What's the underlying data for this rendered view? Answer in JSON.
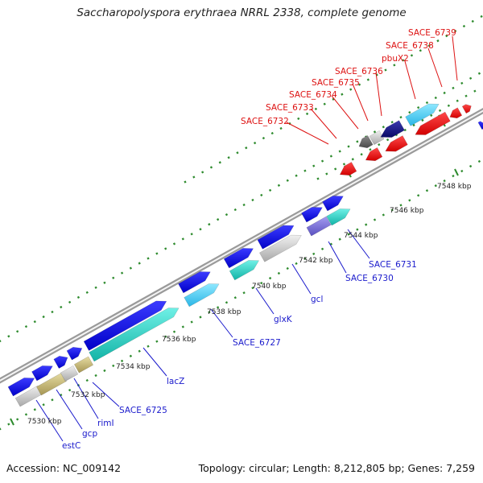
{
  "title": "Saccharopolyspora erythraea NRRL 2338, complete genome",
  "footer": {
    "accession": "Accession: NC_009142",
    "topology": "Topology: circular; Length: 8,212,805 bp; Genes: 7,259"
  },
  "colors": {
    "backbone": "#8c8c8c",
    "tick": "#2e8b2e",
    "forward_label": "#1a1acc",
    "reverse_label": "#dd1111"
  },
  "kbp_labels": [
    "7530 kbp",
    "7532 kbp",
    "7534 kbp",
    "7536 kbp",
    "7538 kbp",
    "7540 kbp",
    "7542 kbp",
    "7544 kbp",
    "7546 kbp",
    "7548 kbp"
  ],
  "gene_labels": {
    "forward": [
      "estC",
      "gcp",
      "rimI",
      "SACE_6725",
      "lacZ",
      "SACE_6727",
      "glxK",
      "gcl",
      "SACE_6730",
      "SACE_6731"
    ],
    "reverse": [
      "SACE_6732",
      "SACE_6733",
      "SACE_6734",
      "SACE_6735",
      "SACE_6736",
      "pbuX2",
      "SACE_6738",
      "SACE_6739"
    ]
  }
}
